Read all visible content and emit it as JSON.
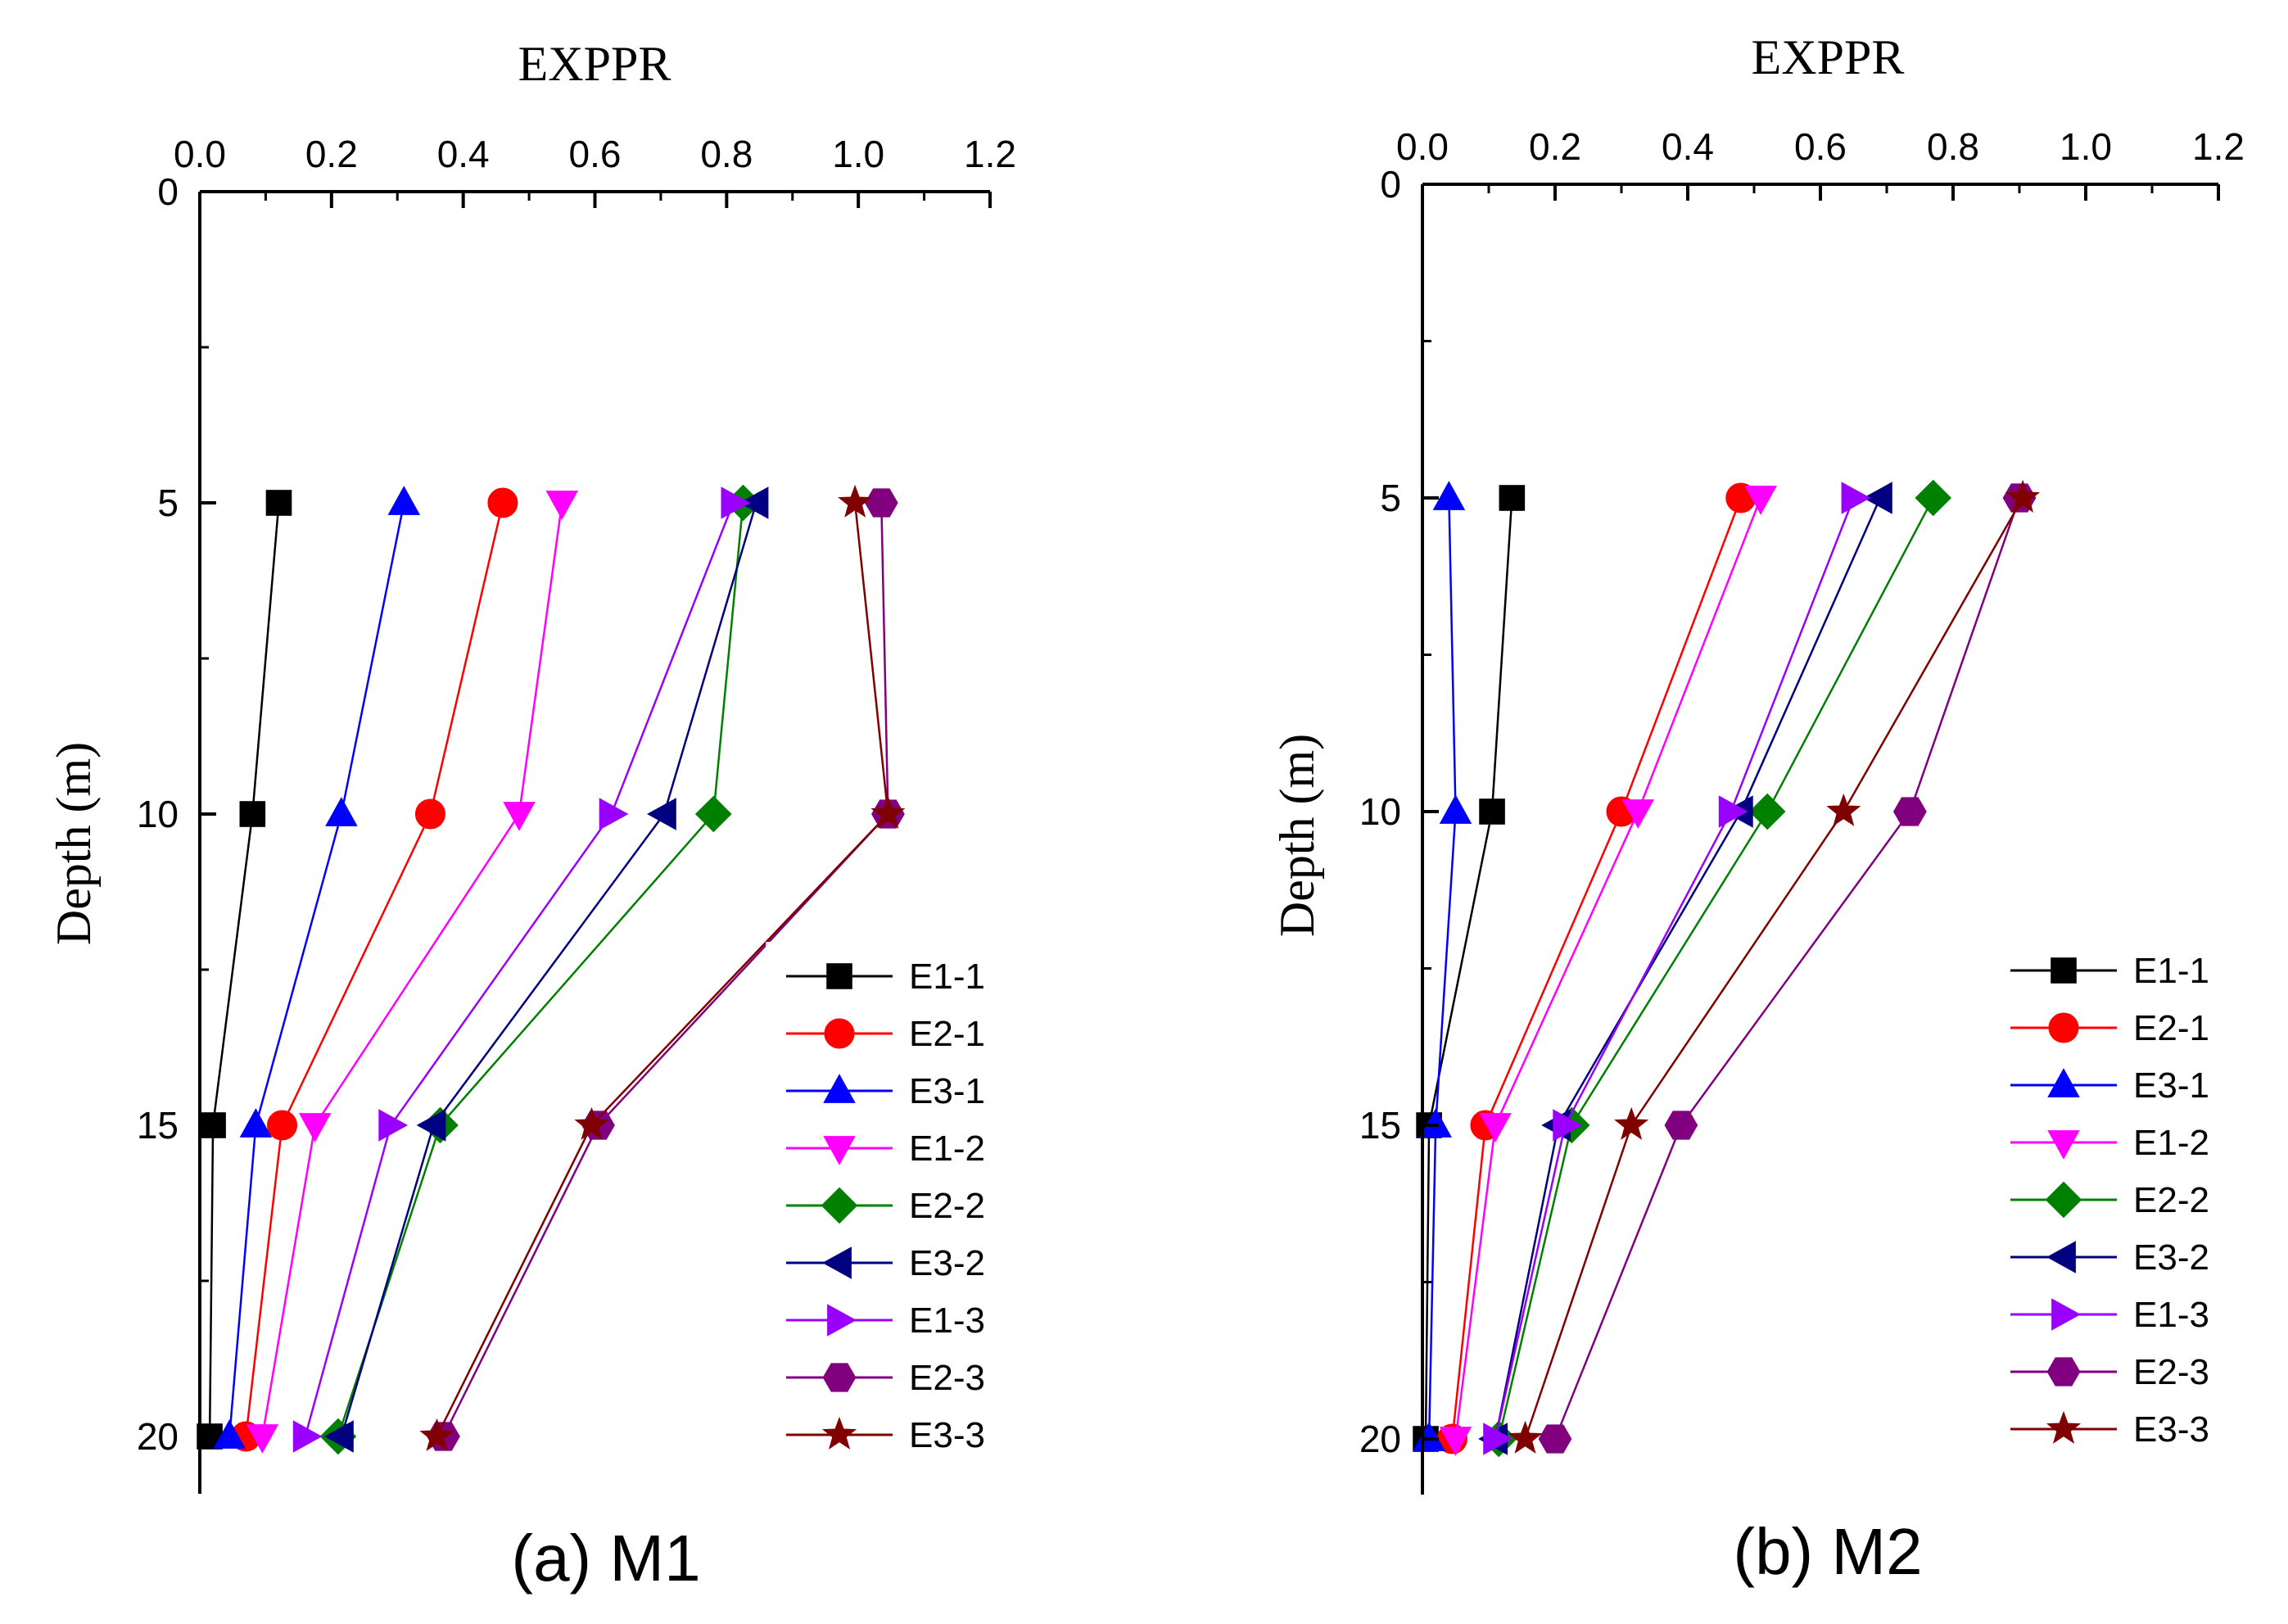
{
  "figure": {
    "panels": [
      {
        "caption": "(a) M1",
        "x_axis": {
          "title": "EXPPR",
          "ticks": [
            "0.0",
            "0.2",
            "0.4",
            "0.6",
            "0.8",
            "1.0",
            "1.2"
          ]
        },
        "y_axis": {
          "title": "Depth (m)",
          "ticks": [
            "0",
            "5",
            "10",
            "15",
            "20"
          ]
        }
      },
      {
        "caption": "(b) M2",
        "x_axis": {
          "title": "EXPPR",
          "ticks": [
            "0.0",
            "0.2",
            "0.4",
            "0.6",
            "0.8",
            "1.0",
            "1.2"
          ]
        },
        "y_axis": {
          "title": "Depth (m)",
          "ticks": [
            "0",
            "5",
            "10",
            "15",
            "20"
          ]
        }
      }
    ]
  },
  "chart_data": [
    {
      "type": "line",
      "title": "(a) M1",
      "xlabel": "EXPPR",
      "ylabel": "Depth (m)",
      "xlim": [
        0,
        1.2
      ],
      "ylim": [
        0,
        21
      ],
      "y_inverted": true,
      "x_axis_position": "top",
      "legend_position": "bottom-right",
      "depths": [
        5,
        10,
        15,
        20
      ],
      "series": [
        {
          "name": "E1-1",
          "color": "#000000",
          "marker": "square",
          "x": [
            0.12,
            0.08,
            0.02,
            0.015
          ]
        },
        {
          "name": "E2-1",
          "color": "#ff0000",
          "marker": "circle",
          "x": [
            0.46,
            0.35,
            0.125,
            0.07
          ]
        },
        {
          "name": "E3-1",
          "color": "#0000ff",
          "marker": "triangle-up",
          "x": [
            0.31,
            0.215,
            0.085,
            0.045
          ]
        },
        {
          "name": "E1-2",
          "color": "#ff00ff",
          "marker": "triangle-down",
          "x": [
            0.55,
            0.485,
            0.175,
            0.095
          ]
        },
        {
          "name": "E2-2",
          "color": "#008000",
          "marker": "diamond",
          "x": [
            0.825,
            0.78,
            0.365,
            0.21
          ]
        },
        {
          "name": "E3-2",
          "color": "#000080",
          "marker": "triangle-left",
          "x": [
            0.845,
            0.705,
            0.355,
            0.215
          ]
        },
        {
          "name": "E1-3",
          "color": "#9900ff",
          "marker": "triangle-right",
          "x": [
            0.81,
            0.625,
            0.29,
            0.16
          ]
        },
        {
          "name": "E2-3",
          "color": "#800080",
          "marker": "hexagon",
          "x": [
            1.035,
            1.045,
            0.605,
            0.37
          ]
        },
        {
          "name": "E3-3",
          "color": "#800000",
          "marker": "star",
          "x": [
            0.995,
            1.045,
            0.595,
            0.36
          ]
        }
      ]
    },
    {
      "type": "line",
      "title": "(b) M2",
      "xlabel": "EXPPR",
      "ylabel": "Depth (m)",
      "xlim": [
        0,
        1.2
      ],
      "ylim": [
        0,
        21
      ],
      "y_inverted": true,
      "x_axis_position": "top",
      "legend_position": "bottom-right",
      "depths": [
        5,
        10,
        15,
        20
      ],
      "series": [
        {
          "name": "E1-1",
          "color": "#000000",
          "marker": "square",
          "x": [
            0.135,
            0.105,
            0.01,
            0.005
          ]
        },
        {
          "name": "E2-1",
          "color": "#ff0000",
          "marker": "circle",
          "x": [
            0.48,
            0.3,
            0.095,
            0.045
          ]
        },
        {
          "name": "E3-1",
          "color": "#0000ff",
          "marker": "triangle-up",
          "x": [
            0.04,
            0.05,
            0.02,
            0.01
          ]
        },
        {
          "name": "E1-2",
          "color": "#ff00ff",
          "marker": "triangle-down",
          "x": [
            0.51,
            0.325,
            0.11,
            0.05
          ]
        },
        {
          "name": "E2-2",
          "color": "#008000",
          "marker": "diamond",
          "x": [
            0.77,
            0.52,
            0.225,
            0.115
          ]
        },
        {
          "name": "E3-2",
          "color": "#000080",
          "marker": "triangle-left",
          "x": [
            0.69,
            0.48,
            0.205,
            0.11
          ]
        },
        {
          "name": "E1-3",
          "color": "#9900ff",
          "marker": "triangle-right",
          "x": [
            0.65,
            0.465,
            0.215,
            0.11
          ]
        },
        {
          "name": "E2-3",
          "color": "#800080",
          "marker": "hexagon",
          "x": [
            0.9,
            0.735,
            0.39,
            0.2
          ]
        },
        {
          "name": "E3-3",
          "color": "#800000",
          "marker": "star",
          "x": [
            0.905,
            0.635,
            0.315,
            0.155
          ]
        }
      ]
    }
  ]
}
